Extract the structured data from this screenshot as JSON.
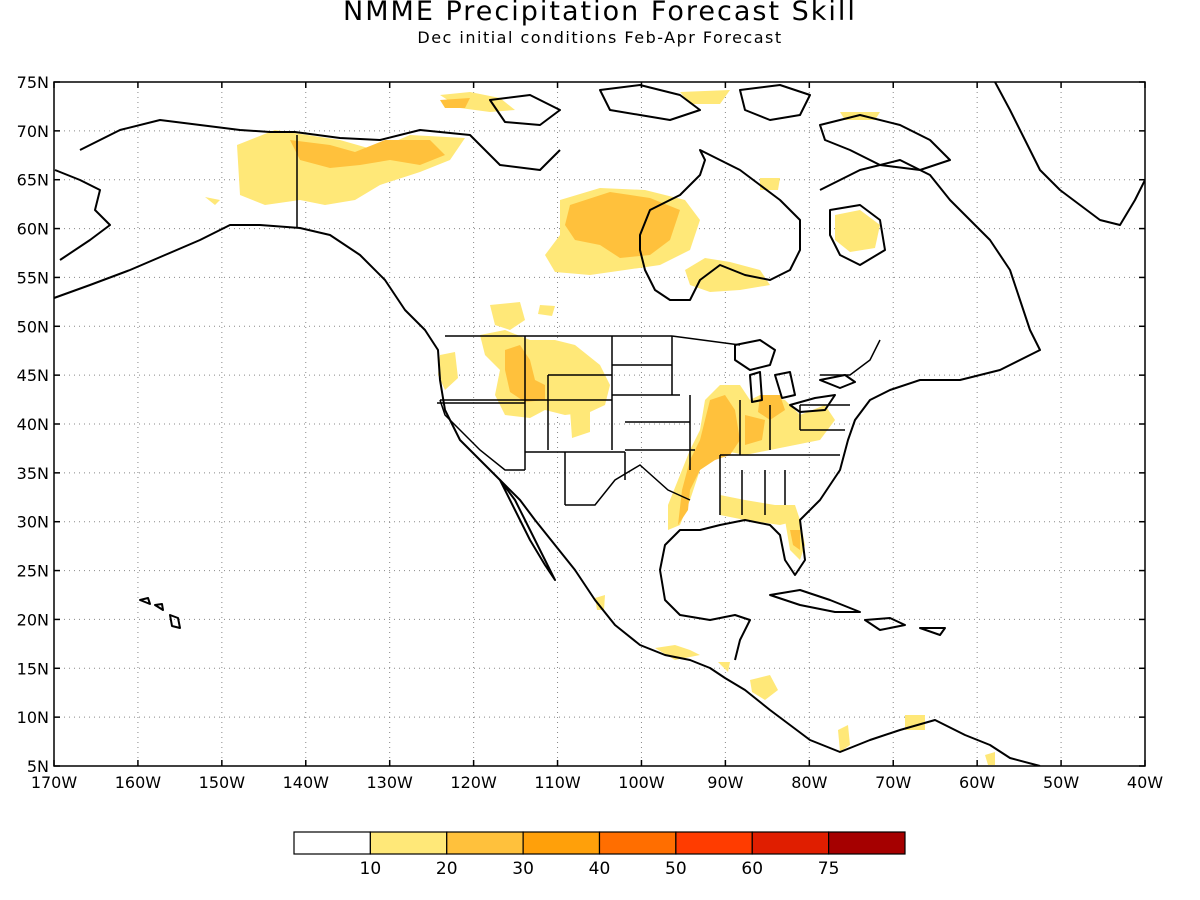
{
  "title": "NMME Precipitation Forecast Skill",
  "subtitle": "Dec initial conditions   Feb-Apr Forecast",
  "axes": {
    "lat_labels": [
      "75N",
      "70N",
      "65N",
      "60N",
      "55N",
      "50N",
      "45N",
      "40N",
      "35N",
      "30N",
      "25N",
      "20N",
      "15N",
      "10N",
      "5N"
    ],
    "lon_labels": [
      "170W",
      "160W",
      "150W",
      "140W",
      "130W",
      "120W",
      "110W",
      "100W",
      "90W",
      "80W",
      "70W",
      "60W",
      "50W",
      "40W"
    ],
    "lat_range": [
      5,
      75
    ],
    "lon_range": [
      -170,
      -40
    ],
    "grid": "dotted"
  },
  "colorbar": {
    "tick_labels": [
      "10",
      "20",
      "30",
      "40",
      "50",
      "60",
      "75"
    ],
    "colors": [
      "#ffffff",
      "#ffe878",
      "#ffc13c",
      "#ffa00a",
      "#ff6e00",
      "#ff3c00",
      "#e01e00",
      "#a50000"
    ]
  },
  "skill_regions": [
    {
      "name": "Alaska interior",
      "level": 1
    },
    {
      "name": "Yukon / NW Canada",
      "level": 2
    },
    {
      "name": "Central Canada",
      "level": 2
    },
    {
      "name": "Hudson Bay south",
      "level": 1
    },
    {
      "name": "Quebec / Labrador",
      "level": 1
    },
    {
      "name": "US Northwest / Northern Rockies",
      "level": 1
    },
    {
      "name": "Idaho / Wyoming",
      "level": 2
    },
    {
      "name": "Ohio Valley",
      "level": 2
    },
    {
      "name": "Lower Mississippi Valley",
      "level": 2
    },
    {
      "name": "Florida",
      "level": 2
    },
    {
      "name": "Central America / Caribbean",
      "level": 1
    }
  ]
}
